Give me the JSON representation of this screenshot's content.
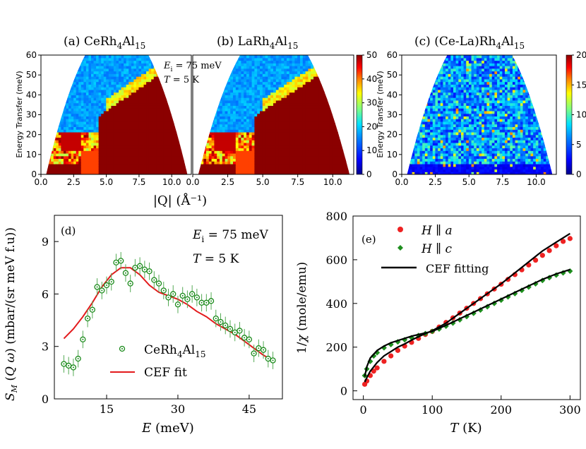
{
  "figure": {
    "panels": [
      "(a)",
      "(b)",
      "(c)",
      "(d)",
      "(e)"
    ],
    "upper_panel_titles": [
      {
        "label": "(a)",
        "compound": "CeRh",
        "sub1": "4",
        "mid": "Al",
        "sub2": "15"
      },
      {
        "label": "(b)",
        "compound": "LaRh",
        "sub1": "4",
        "mid": "Al",
        "sub2": "15"
      },
      {
        "label": "(c)",
        "compound": "(Ce-La)Rh",
        "sub1": "4",
        "mid": "Al",
        "sub2": "15"
      }
    ],
    "colors": {
      "heat_low": "#00008b",
      "heat_high": "#8b0000",
      "scatter_green": "#1a8a1a",
      "fit_red": "#e31a1c",
      "red_points": "#ee2222",
      "green_points": "#1e8e1e",
      "black": "#000000"
    }
  },
  "chart_data": [
    {
      "type": "heatmap",
      "panel": "(a)",
      "title": "CeRh4Al15",
      "ylabel": "Energy Transfer (meV)",
      "xlabel": "|Q| (Å⁻¹)",
      "xlim": [
        0,
        11.5
      ],
      "ylim": [
        0,
        60
      ],
      "xticks": [
        "0.0",
        "2.5",
        "5.0",
        "7.5",
        "10.0"
      ],
      "yticks": [
        "0",
        "10",
        "20",
        "30",
        "40",
        "50",
        "60"
      ],
      "annotations": [
        "E_i = 75 meV",
        "T = 5 K"
      ],
      "colorbar": {
        "min": 0,
        "max": 50,
        "ticks": [
          "0",
          "10",
          "20",
          "30",
          "40",
          "50"
        ]
      }
    },
    {
      "type": "heatmap",
      "panel": "(b)",
      "title": "LaRh4Al15",
      "xlim": [
        0,
        11.5
      ],
      "ylim": [
        0,
        60
      ],
      "xticks": [
        "0.0",
        "2.5",
        "5.0",
        "7.5",
        "10.0"
      ],
      "colorbar": {
        "min": 0,
        "max": 50,
        "ticks": [
          "0",
          "10",
          "20",
          "30",
          "40",
          "50"
        ]
      }
    },
    {
      "type": "heatmap",
      "panel": "(c)",
      "title": "(Ce-La)Rh4Al15",
      "ylabel": "Energy Transfer (meV)",
      "xlim": [
        0,
        11.5
      ],
      "ylim": [
        0,
        60
      ],
      "xticks": [
        "0.0",
        "2.5",
        "5.0",
        "7.5",
        "10.0"
      ],
      "yticks": [
        "0",
        "10",
        "20",
        "30",
        "40",
        "50",
        "60"
      ],
      "colorbar": {
        "min": 0,
        "max": 20,
        "ticks": [
          "0",
          "5",
          "10",
          "15",
          "20"
        ]
      }
    },
    {
      "type": "scatter",
      "panel": "(d)",
      "xlabel": "E (meV)",
      "ylabel": "S_M (Q ω) (mbar/(sr meV f.u))",
      "xlim": [
        4,
        52
      ],
      "ylim": [
        0,
        10.5
      ],
      "xticks": [
        15,
        30,
        45
      ],
      "yticks": [
        0,
        3,
        6,
        9
      ],
      "annotations": [
        "E_i = 75 meV",
        "T = 5 K"
      ],
      "legend_position": "lower-left",
      "series": [
        {
          "name": "CeRh4Al15",
          "x": [
            6,
            7,
            8,
            9,
            10,
            11,
            12,
            13,
            14,
            15,
            16,
            17,
            18,
            19,
            20,
            21,
            22,
            23,
            24,
            25,
            26,
            27,
            28,
            29,
            30,
            31,
            32,
            33,
            34,
            35,
            36,
            37,
            38,
            39,
            40,
            41,
            42,
            43,
            44,
            45,
            46,
            47,
            48,
            49,
            50
          ],
          "y": [
            2.0,
            1.9,
            1.8,
            2.3,
            3.4,
            4.6,
            5.1,
            6.4,
            6.2,
            6.5,
            6.7,
            7.8,
            7.9,
            7.2,
            6.6,
            7.5,
            7.6,
            7.4,
            7.3,
            6.8,
            6.6,
            6.2,
            5.8,
            6.0,
            5.4,
            5.9,
            5.7,
            6.0,
            5.8,
            5.5,
            5.5,
            5.6,
            4.6,
            4.4,
            4.2,
            4.0,
            3.8,
            3.9,
            3.5,
            3.4,
            2.6,
            2.9,
            2.8,
            2.3,
            2.2
          ],
          "yerr": [
            0.5,
            0.5,
            0.5,
            0.5,
            0.5,
            0.5,
            0.5,
            0.5,
            0.5,
            0.5,
            0.5,
            0.5,
            0.5,
            0.5,
            0.5,
            0.5,
            0.5,
            0.5,
            0.5,
            0.5,
            0.5,
            0.5,
            0.5,
            0.5,
            0.5,
            0.5,
            0.5,
            0.5,
            0.5,
            0.5,
            0.5,
            0.5,
            0.5,
            0.5,
            0.5,
            0.5,
            0.5,
            0.5,
            0.5,
            0.5,
            0.5,
            0.5,
            0.5,
            0.5,
            0.5
          ]
        },
        {
          "name": "CEF fit",
          "type": "line",
          "x": [
            6,
            8,
            10,
            12,
            14,
            16,
            18,
            20,
            22,
            24,
            26,
            28,
            30,
            32,
            34,
            36,
            38,
            40,
            42,
            44,
            46,
            48,
            50
          ],
          "y": [
            3.45,
            4.0,
            4.7,
            5.5,
            6.4,
            7.1,
            7.5,
            7.5,
            7.1,
            6.5,
            6.1,
            5.9,
            5.7,
            5.4,
            5.0,
            4.7,
            4.3,
            4.0,
            3.7,
            3.3,
            2.9,
            2.5,
            2.2
          ]
        }
      ]
    },
    {
      "type": "scatter",
      "panel": "(e)",
      "xlabel": "T (K)",
      "ylabel": "1/χ (mole/emu)",
      "xlim": [
        -15,
        315
      ],
      "ylim": [
        -40,
        800
      ],
      "xticks": [
        0,
        100,
        200,
        300
      ],
      "yticks": [
        0,
        200,
        400,
        600,
        800
      ],
      "legend_position": "top-left",
      "series": [
        {
          "name": "H ∥ a",
          "x": [
            2,
            5,
            10,
            15,
            20,
            30,
            40,
            50,
            60,
            70,
            80,
            90,
            100,
            110,
            120,
            130,
            140,
            150,
            160,
            170,
            180,
            190,
            200,
            210,
            220,
            230,
            240,
            250,
            260,
            270,
            280,
            290,
            300
          ],
          "y": [
            30,
            45,
            70,
            90,
            105,
            135,
            160,
            185,
            205,
            222,
            240,
            258,
            272,
            292,
            313,
            334,
            356,
            378,
            400,
            422,
            444,
            466,
            488,
            510,
            532,
            554,
            576,
            598,
            620,
            642,
            664,
            684,
            697
          ]
        },
        {
          "name": "H ∥ c",
          "x": [
            2,
            5,
            10,
            15,
            20,
            30,
            40,
            50,
            60,
            70,
            80,
            90,
            100,
            110,
            120,
            130,
            140,
            150,
            160,
            170,
            180,
            190,
            200,
            210,
            220,
            230,
            240,
            250,
            260,
            270,
            280,
            290,
            300
          ],
          "y": [
            70,
            100,
            135,
            160,
            175,
            197,
            212,
            224,
            234,
            243,
            253,
            262,
            272,
            283,
            296,
            310,
            325,
            340,
            355,
            370,
            385,
            400,
            415,
            430,
            445,
            460,
            475,
            490,
            505,
            518,
            530,
            540,
            548
          ]
        },
        {
          "name": "CEF fitting",
          "type": "line",
          "x": [
            2,
            5,
            10,
            20,
            30,
            40,
            50,
            60,
            70,
            80,
            90,
            100,
            120,
            140,
            160,
            180,
            200,
            220,
            240,
            260,
            280,
            300
          ],
          "y": [
            40,
            60,
            90,
            130,
            160,
            180,
            200,
            215,
            232,
            248,
            262,
            275,
            310,
            355,
            400,
            445,
            490,
            540,
            590,
            640,
            680,
            720
          ]
        },
        {
          "name": "",
          "type": "line",
          "x": [
            2,
            5,
            10,
            20,
            30,
            40,
            50,
            60,
            70,
            80,
            90,
            100,
            120,
            140,
            160,
            180,
            200,
            220,
            240,
            260,
            280,
            300
          ],
          "y": [
            65,
            110,
            150,
            185,
            205,
            220,
            230,
            240,
            250,
            258,
            265,
            272,
            300,
            330,
            360,
            390,
            420,
            450,
            480,
            510,
            535,
            555
          ]
        }
      ]
    }
  ]
}
